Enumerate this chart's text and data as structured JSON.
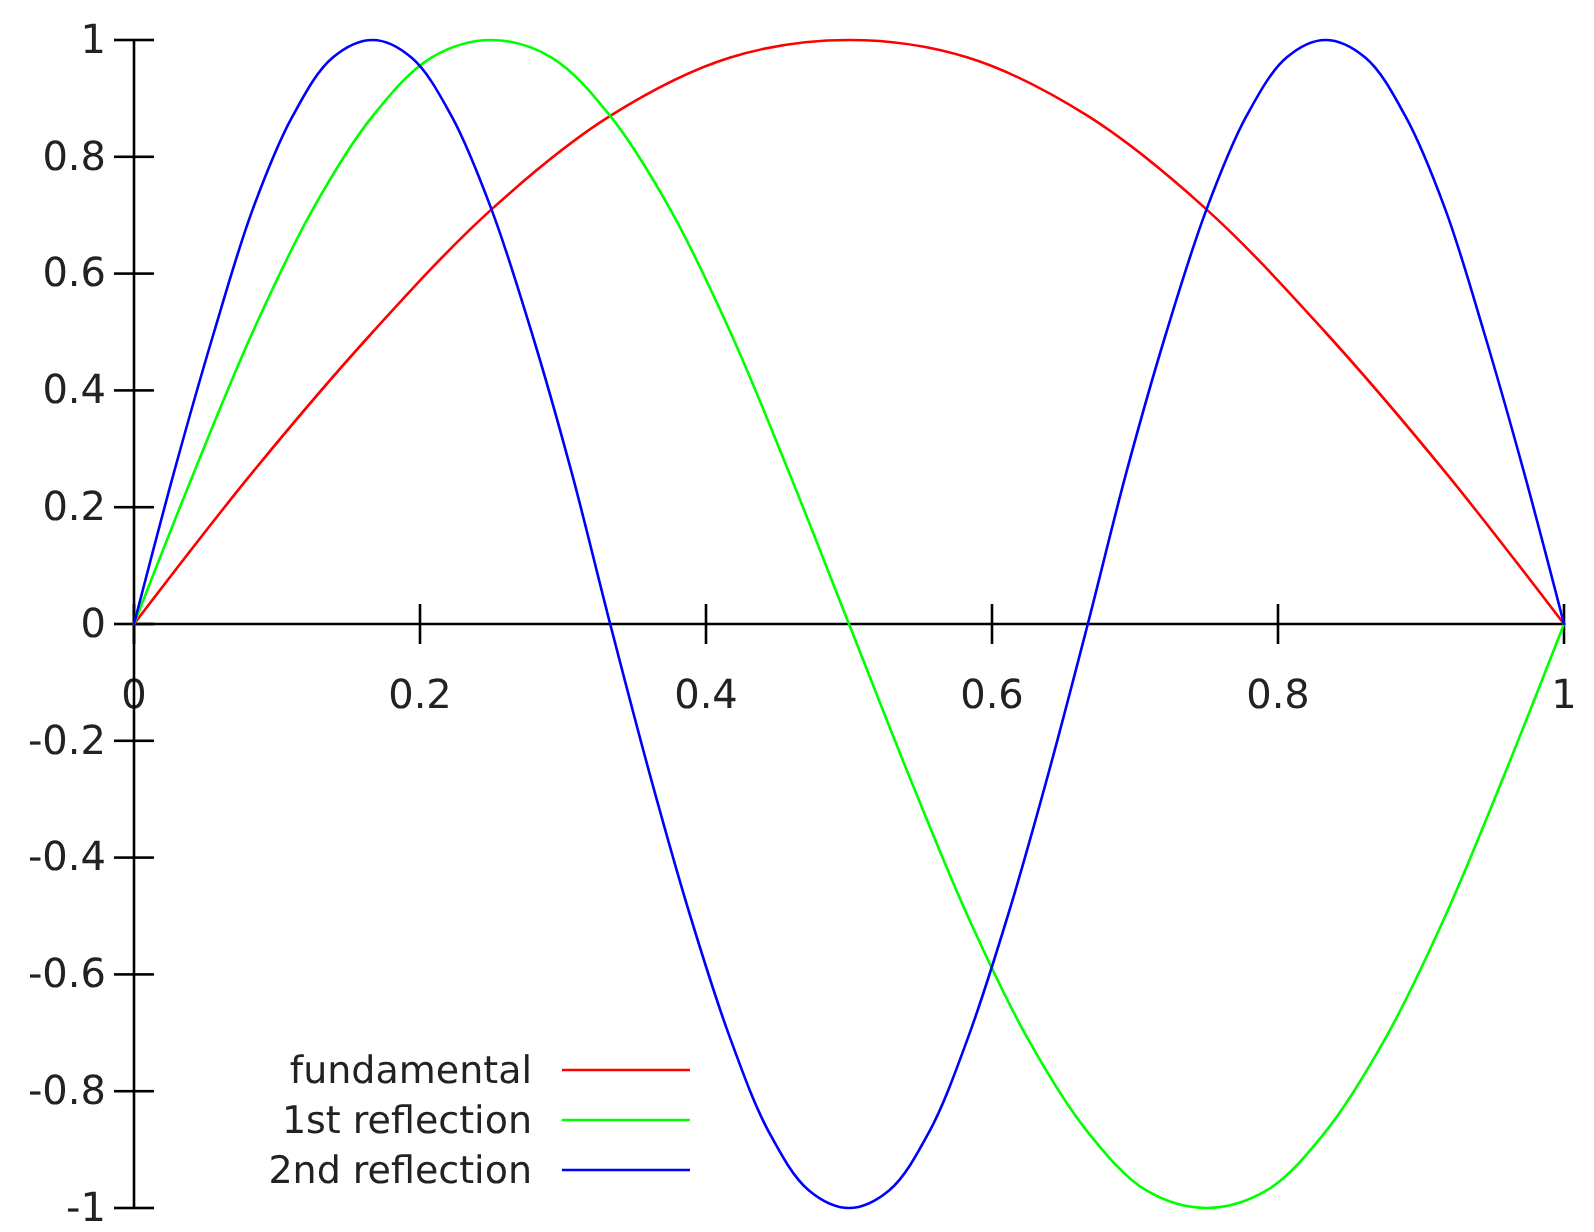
{
  "chart_data": {
    "type": "line",
    "series": [
      {
        "name": "fundamental",
        "color": "#ff0000",
        "x": [
          0,
          0.083,
          0.167,
          0.25,
          0.333,
          0.417,
          0.5,
          0.583,
          0.667,
          0.75,
          0.833,
          0.917,
          1
        ],
        "values": [
          0,
          0.26,
          0.5,
          0.71,
          0.87,
          0.97,
          1,
          0.97,
          0.87,
          0.71,
          0.5,
          0.26,
          0
        ]
      },
      {
        "name": "1st reflection",
        "color": "#00ff00",
        "x": [
          0,
          0.042,
          0.083,
          0.125,
          0.167,
          0.208,
          0.25,
          0.292,
          0.333,
          0.375,
          0.417,
          0.458,
          0.5,
          0.542,
          0.583,
          0.625,
          0.667,
          0.708,
          0.75,
          0.792,
          0.833,
          0.875,
          0.917,
          0.958,
          1
        ],
        "values": [
          0,
          0.26,
          0.5,
          0.71,
          0.87,
          0.97,
          1,
          0.97,
          0.87,
          0.71,
          0.5,
          0.26,
          0,
          -0.26,
          -0.5,
          -0.71,
          -0.87,
          -0.97,
          -1,
          -0.97,
          -0.87,
          -0.71,
          -0.5,
          -0.26,
          0
        ]
      },
      {
        "name": "2nd reflection",
        "color": "#0000ff",
        "x": [
          0,
          0.028,
          0.056,
          0.083,
          0.111,
          0.139,
          0.167,
          0.194,
          0.222,
          0.25,
          0.278,
          0.306,
          0.333,
          0.361,
          0.389,
          0.417,
          0.444,
          0.472,
          0.5,
          0.528,
          0.556,
          0.583,
          0.611,
          0.639,
          0.667,
          0.694,
          0.722,
          0.75,
          0.778,
          0.806,
          0.833,
          0.861,
          0.889,
          0.917,
          0.944,
          0.972,
          1
        ],
        "values": [
          0,
          0.26,
          0.5,
          0.71,
          0.87,
          0.97,
          1,
          0.97,
          0.87,
          0.71,
          0.5,
          0.26,
          0,
          -0.26,
          -0.5,
          -0.71,
          -0.87,
          -0.97,
          -1,
          -0.97,
          -0.87,
          -0.71,
          -0.5,
          -0.26,
          0,
          0.26,
          0.5,
          0.71,
          0.87,
          0.97,
          1,
          0.97,
          0.87,
          0.71,
          0.5,
          0.26,
          0
        ]
      }
    ],
    "xlim": [
      0,
      1
    ],
    "ylim": [
      -1,
      1
    ],
    "xticks": [
      0,
      0.2,
      0.4,
      0.6,
      0.8,
      1
    ],
    "yticks": [
      -1,
      -0.8,
      -0.6,
      -0.4,
      -0.2,
      0,
      0.2,
      0.4,
      0.6,
      0.8,
      1
    ],
    "legend": "bottom left"
  }
}
